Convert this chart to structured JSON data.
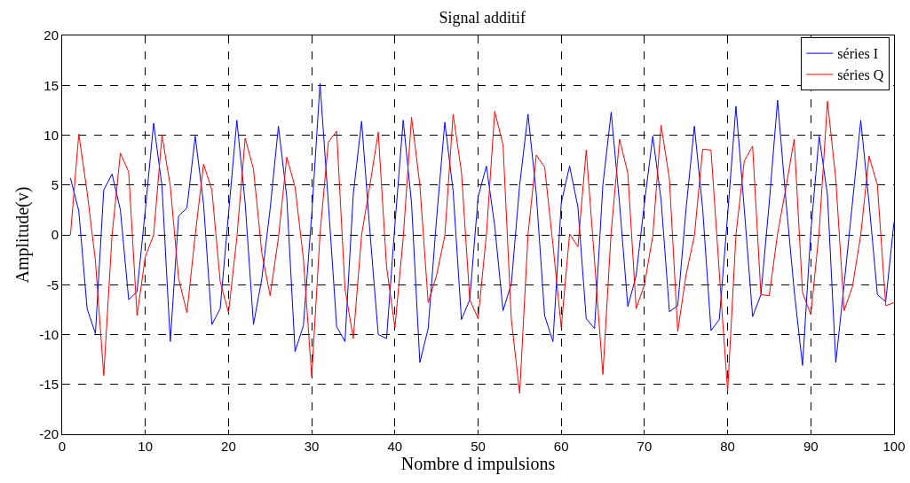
{
  "chart_data": {
    "type": "line",
    "title": "Signal additif",
    "xlabel": "Nombre d impulsions",
    "ylabel": "Amplitude(v)",
    "x": [
      1,
      2,
      3,
      4,
      5,
      6,
      7,
      8,
      9,
      10,
      11,
      12,
      13,
      14,
      15,
      16,
      17,
      18,
      19,
      20,
      21,
      22,
      23,
      24,
      25,
      26,
      27,
      28,
      29,
      30,
      31,
      32,
      33,
      34,
      35,
      36,
      37,
      38,
      39,
      40,
      41,
      42,
      43,
      44,
      45,
      46,
      47,
      48,
      49,
      50,
      51,
      52,
      53,
      54,
      55,
      56,
      57,
      58,
      59,
      60,
      61,
      62,
      63,
      64,
      65,
      66,
      67,
      68,
      69,
      70,
      71,
      72,
      73,
      74,
      75,
      76,
      77,
      78,
      79,
      80,
      81,
      82,
      83,
      84,
      85,
      86,
      87,
      88,
      89,
      90,
      91,
      92,
      93,
      94,
      95,
      96,
      97,
      98,
      99,
      100
    ],
    "series": [
      {
        "name": "séries I",
        "color": "#0000ff",
        "values": [
          5.7,
          2.4,
          -7.4,
          -9.9,
          4.5,
          6.1,
          2.5,
          -6.5,
          -5.7,
          2.5,
          11.2,
          4.9,
          -10.7,
          1.9,
          2.7,
          9.9,
          3.1,
          -9.0,
          -7.4,
          2.1,
          11.5,
          3.2,
          -9,
          -4.4,
          2.6,
          10.9,
          3.8,
          -11.7,
          -9.1,
          2,
          15.2,
          3.2,
          -9.2,
          -10.7,
          4.1,
          11.4,
          0.3,
          -10,
          -10.4,
          1,
          11.5,
          3.2,
          -12.8,
          -9.4,
          1.5,
          11.3,
          4.4,
          -8.5,
          -6.5,
          3.8,
          6.9,
          0.9,
          -7.6,
          -4.9,
          5,
          12.1,
          4.1,
          -8.1,
          -10.7,
          3.2,
          6.9,
          2.8,
          -8.4,
          -9.4,
          5,
          12.3,
          3.2,
          -7.2,
          -4.1,
          3.2,
          9.9,
          3.5,
          -7.7,
          -7.1,
          2.6,
          10.9,
          2.6,
          -9.6,
          -8.5,
          2,
          12.9,
          2.6,
          -8.2,
          -6,
          3.2,
          13.5,
          3.5,
          -5.6,
          -13.1,
          0.3,
          9.9,
          4,
          -12.8,
          -5,
          3.2,
          11.5,
          3.2,
          -6,
          -6.7,
          1.3
        ]
      },
      {
        "name": "séries Q",
        "color": "#ff0000",
        "values": [
          0,
          10.1,
          4.3,
          -2.6,
          -14.1,
          0,
          8.2,
          6.3,
          -8.1,
          -2.2,
          0,
          10,
          4.9,
          -4.4,
          -7.8,
          0,
          7.1,
          4.5,
          -4.7,
          -7.8,
          -0.3,
          9.7,
          6.6,
          -1.8,
          -6.1,
          -0.3,
          7.8,
          4.8,
          -2.4,
          -14.2,
          0.1,
          9.3,
          10.4,
          -5.4,
          -10.4,
          0,
          5,
          10.3,
          -3.2,
          -9.3,
          -0.3,
          11.8,
          5,
          -6.8,
          -4.1,
          -0.1,
          12.1,
          6.3,
          -6.5,
          -8.4,
          0,
          12.4,
          9,
          -8.5,
          -15.9,
          0,
          8,
          6.8,
          -1,
          -9.3,
          0.1,
          -1.2,
          8.5,
          -2.6,
          -14,
          0.3,
          9.6,
          6.2,
          -7.4,
          -5,
          -0.1,
          11,
          5.6,
          -9.7,
          -4,
          -0.1,
          8.6,
          8.5,
          -3.8,
          -15.7,
          0,
          7.4,
          8.9,
          -6,
          -6.1,
          0.1,
          4.7,
          9.6,
          -5.8,
          -8,
          0.3,
          13.4,
          5.6,
          -7.6,
          -5.2,
          0,
          7.9,
          5,
          -7.1,
          -6.8
        ]
      }
    ],
    "xlim": [
      0,
      100
    ],
    "xticks": [
      0,
      10,
      20,
      30,
      40,
      50,
      60,
      70,
      80,
      90,
      100
    ],
    "ylim": [
      -20,
      20
    ],
    "yticks": [
      -20,
      -15,
      -10,
      -5,
      0,
      5,
      10,
      15,
      20
    ],
    "grid": true,
    "legend": "top right",
    "marker": "none",
    "line_style": "solid"
  }
}
